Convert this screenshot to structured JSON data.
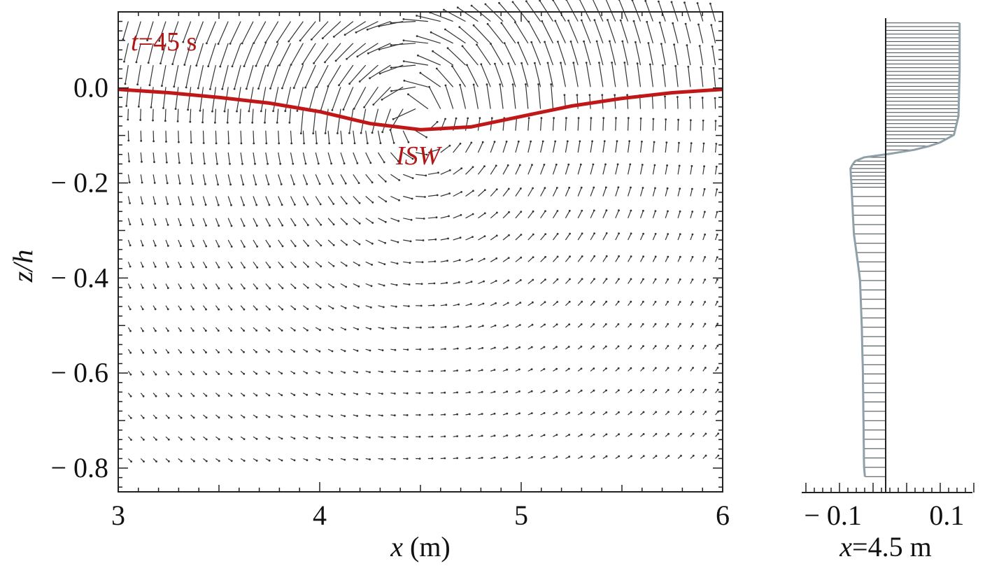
{
  "chart_data": [
    {
      "type": "quiver",
      "xlabel_var": "x",
      "xlabel_unit": " (m)",
      "ylabel": "z/h",
      "xlim": [
        3,
        6
      ],
      "ylim": [
        -0.85,
        0.16
      ],
      "x_ticks": [
        3,
        4,
        5,
        6
      ],
      "x_tick_labels": [
        "3",
        "4",
        "5",
        "6"
      ],
      "y_ticks": [
        0.0,
        -0.2,
        -0.4,
        -0.6,
        -0.8
      ],
      "y_tick_labels": [
        "0.0",
        "− 0.2",
        "− 0.4",
        "− 0.6",
        "− 0.8"
      ],
      "time_annotation_var": "t",
      "time_annotation_value": "=45 s",
      "interface_label": "ISW",
      "interface_color": "#c01818",
      "vector_color": "#333333",
      "interface_profile": {
        "x": [
          3.0,
          3.25,
          3.5,
          3.75,
          4.0,
          4.25,
          4.5,
          4.75,
          5.0,
          5.25,
          5.5,
          5.75,
          6.0
        ],
        "z": [
          -0.003,
          -0.01,
          -0.02,
          -0.032,
          -0.05,
          -0.075,
          -0.088,
          -0.082,
          -0.06,
          -0.038,
          -0.022,
          -0.01,
          -0.003
        ]
      },
      "wave_center_x": 4.5,
      "vortex_center_z": -0.07
    },
    {
      "type": "velocity_profile",
      "location_var": "x",
      "location_value": "=4.5 m",
      "x_tick_labels": [
        "− 0.1",
        "0.1"
      ],
      "x_ticks": [
        -0.1,
        0.1
      ],
      "xlim": [
        -0.15,
        0.15
      ],
      "ylim": [
        -0.85,
        0.16
      ],
      "profile": {
        "z": [
          0.15,
          0.05,
          -0.05,
          -0.09,
          -0.11,
          -0.125,
          -0.14,
          -0.16,
          -0.2,
          -0.3,
          -0.4,
          -0.5,
          -0.6,
          -0.7,
          -0.8,
          -0.83
        ],
        "u": [
          0.13,
          0.13,
          0.128,
          0.12,
          0.09,
          0.04,
          -0.05,
          -0.062,
          -0.06,
          -0.056,
          -0.045,
          -0.042,
          -0.04,
          -0.039,
          -0.038,
          -0.036
        ]
      }
    }
  ]
}
